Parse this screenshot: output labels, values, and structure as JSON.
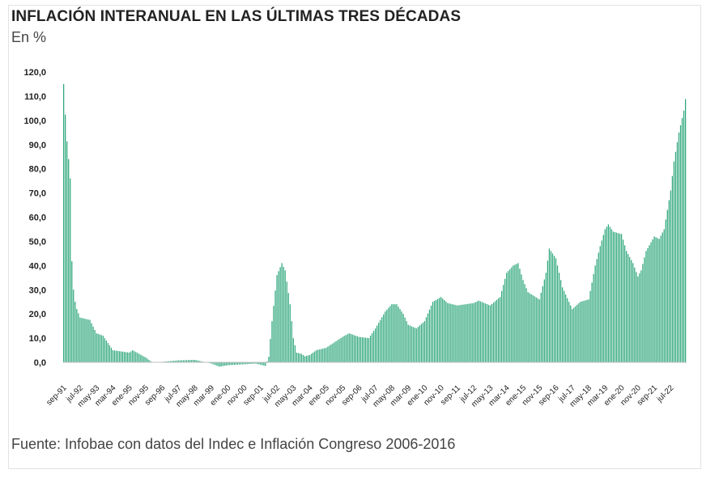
{
  "header": {
    "title": "INFLACIÓN INTERANUAL EN LAS ÚLTIMAS TRES DÉCADAS",
    "subtitle": "En %"
  },
  "footer": {
    "source": "Fuente: Infobae con datos del Indec e Inflación Congreso 2006-2016"
  },
  "chart_data": {
    "type": "bar",
    "title": "INFLACIÓN INTERANUAL EN LAS ÚLTIMAS TRES DÉCADAS",
    "subtitle": "En %",
    "ylabel": "",
    "xlabel": "",
    "ylim": [
      -3,
      120
    ],
    "grid": false,
    "bar_color": "#2fa77c",
    "y_ticks": [
      "0,0",
      "10,0",
      "20,0",
      "30,0",
      "40,0",
      "50,0",
      "60,0",
      "70,0",
      "80,0",
      "90,0",
      "100,0",
      "110,0",
      "120,0"
    ],
    "x_tick_labels": [
      "sep-91",
      "jul-92",
      "may-93",
      "mar-94",
      "ene-95",
      "nov-95",
      "sep-96",
      "jul-97",
      "may-98",
      "mar-99",
      "ene-00",
      "nov-00",
      "sep-01",
      "jul-02",
      "may-03",
      "mar-04",
      "ene-05",
      "nov-05",
      "sep-06",
      "jul-07",
      "may-08",
      "mar-09",
      "ene-10",
      "nov-10",
      "sep-11",
      "jul-12",
      "may-13",
      "mar-14",
      "ene-15",
      "nov-15",
      "sep-16",
      "jul-17",
      "may-18",
      "mar-19",
      "ene-20",
      "nov-20",
      "sep-21",
      "jul-22"
    ],
    "series_key_points": [
      {
        "date": "sep-91",
        "value": 115.0
      },
      {
        "date": "oct-91",
        "value": 102.4
      },
      {
        "date": "nov-91",
        "value": 91.3
      },
      {
        "date": "dic-91",
        "value": 84.0
      },
      {
        "date": "ene-92",
        "value": 76.0
      },
      {
        "date": "feb-92",
        "value": 41.8
      },
      {
        "date": "mar-92",
        "value": 30.0
      },
      {
        "date": "abr-92",
        "value": 25.0
      },
      {
        "date": "may-92",
        "value": 22.0
      },
      {
        "date": "jul-92",
        "value": 18.5
      },
      {
        "date": "ene-93",
        "value": 17.5
      },
      {
        "date": "may-93",
        "value": 12.0
      },
      {
        "date": "sep-93",
        "value": 11.0
      },
      {
        "date": "mar-94",
        "value": 5.0
      },
      {
        "date": "ene-95",
        "value": 4.0
      },
      {
        "date": "mar-95",
        "value": 5.0
      },
      {
        "date": "nov-95",
        "value": 2.0
      },
      {
        "date": "mar-96",
        "value": 0.0
      },
      {
        "date": "sep-96",
        "value": 0.2
      },
      {
        "date": "jul-97",
        "value": 0.8
      },
      {
        "date": "may-98",
        "value": 1.0
      },
      {
        "date": "mar-99",
        "value": -0.5
      },
      {
        "date": "ago-99",
        "value": -1.8
      },
      {
        "date": "ene-00",
        "value": -1.2
      },
      {
        "date": "nov-00",
        "value": -0.8
      },
      {
        "date": "jun-01",
        "value": -0.5
      },
      {
        "date": "sep-01",
        "value": -1.0
      },
      {
        "date": "dic-01",
        "value": -1.5
      },
      {
        "date": "feb-02",
        "value": 2.3
      },
      {
        "date": "abr-02",
        "value": 17.0
      },
      {
        "date": "jul-02",
        "value": 36.0
      },
      {
        "date": "oct-02",
        "value": 41.0
      },
      {
        "date": "dic-02",
        "value": 38.0
      },
      {
        "date": "mar-03",
        "value": 24.0
      },
      {
        "date": "may-03",
        "value": 10.0
      },
      {
        "date": "jul-03",
        "value": 4.0
      },
      {
        "date": "oct-03",
        "value": 3.5
      },
      {
        "date": "dic-03",
        "value": 2.5
      },
      {
        "date": "mar-04",
        "value": 3.0
      },
      {
        "date": "jul-04",
        "value": 5.0
      },
      {
        "date": "ene-05",
        "value": 6.0
      },
      {
        "date": "nov-05",
        "value": 10.5
      },
      {
        "date": "mar-06",
        "value": 12.0
      },
      {
        "date": "sep-06",
        "value": 10.5
      },
      {
        "date": "mar-07",
        "value": 10.0
      },
      {
        "date": "jul-07",
        "value": 14.0
      },
      {
        "date": "ene-08",
        "value": 21.0
      },
      {
        "date": "may-08",
        "value": 24.0
      },
      {
        "date": "ago-08",
        "value": 24.0
      },
      {
        "date": "dic-08",
        "value": 20.0
      },
      {
        "date": "mar-09",
        "value": 15.5
      },
      {
        "date": "ago-09",
        "value": 14.0
      },
      {
        "date": "ene-10",
        "value": 17.0
      },
      {
        "date": "jun-10",
        "value": 25.0
      },
      {
        "date": "nov-10",
        "value": 27.0
      },
      {
        "date": "mar-11",
        "value": 24.5
      },
      {
        "date": "sep-11",
        "value": 23.5
      },
      {
        "date": "jul-12",
        "value": 24.5
      },
      {
        "date": "oct-12",
        "value": 25.5
      },
      {
        "date": "may-13",
        "value": 23.5
      },
      {
        "date": "nov-13",
        "value": 27.0
      },
      {
        "date": "mar-14",
        "value": 37.0
      },
      {
        "date": "jul-14",
        "value": 40.0
      },
      {
        "date": "oct-14",
        "value": 41.0
      },
      {
        "date": "ene-15",
        "value": 34.0
      },
      {
        "date": "abr-15",
        "value": 29.0
      },
      {
        "date": "nov-15",
        "value": 26.0
      },
      {
        "date": "mar-16",
        "value": 37.0
      },
      {
        "date": "may-16",
        "value": 47.0
      },
      {
        "date": "sep-16",
        "value": 43.0
      },
      {
        "date": "ene-17",
        "value": 31.0
      },
      {
        "date": "jul-17",
        "value": 22.0
      },
      {
        "date": "dic-17",
        "value": 25.0
      },
      {
        "date": "may-18",
        "value": 26.0
      },
      {
        "date": "sep-18",
        "value": 40.0
      },
      {
        "date": "dic-18",
        "value": 48.0
      },
      {
        "date": "mar-19",
        "value": 55.0
      },
      {
        "date": "may-19",
        "value": 57.0
      },
      {
        "date": "ago-19",
        "value": 54.0
      },
      {
        "date": "ene-20",
        "value": 53.0
      },
      {
        "date": "abr-20",
        "value": 46.0
      },
      {
        "date": "ago-20",
        "value": 41.0
      },
      {
        "date": "nov-20",
        "value": 35.5
      },
      {
        "date": "ene-21",
        "value": 38.0
      },
      {
        "date": "abr-21",
        "value": 46.0
      },
      {
        "date": "sep-21",
        "value": 52.0
      },
      {
        "date": "dic-21",
        "value": 51.0
      },
      {
        "date": "mar-22",
        "value": 55.0
      },
      {
        "date": "jul-22",
        "value": 71.0
      },
      {
        "date": "sep-22",
        "value": 83.0
      },
      {
        "date": "dic-22",
        "value": 95.0
      },
      {
        "date": "mar-23",
        "value": 104.0
      },
      {
        "date": "abr-23",
        "value": 108.8
      }
    ]
  }
}
